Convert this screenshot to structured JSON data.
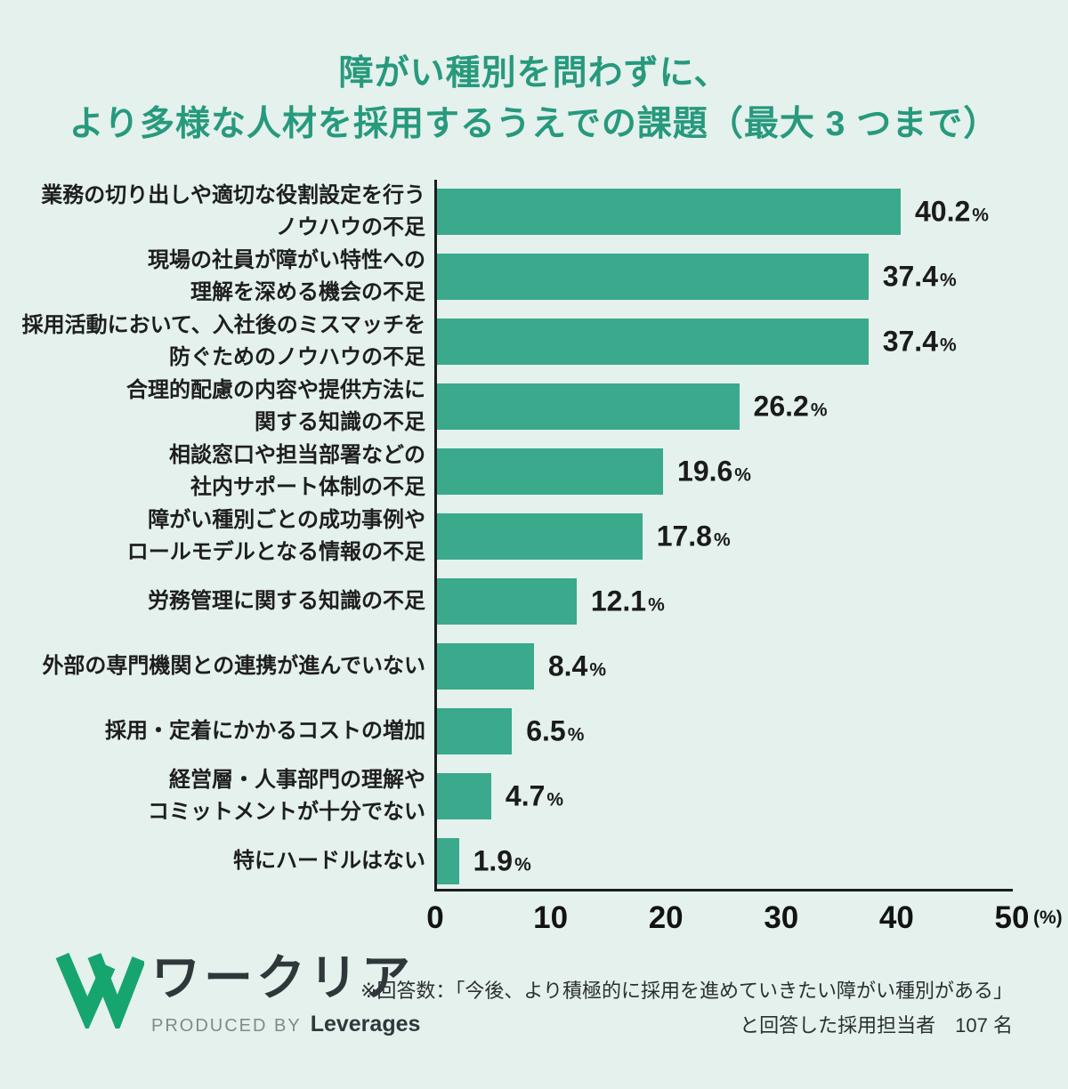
{
  "title": {
    "line1": "障がい種別を問わずに、",
    "line2": "より多様な人材を採用するうえでの課題（最大 3 つまで）"
  },
  "chart_data": {
    "type": "bar",
    "orientation": "horizontal",
    "categories": [
      "業務の切り出しや適切な役割設定を行う\nノウハウの不足",
      "現場の社員が障がい特性への\n理解を深める機会の不足",
      "採用活動において、入社後のミスマッチを\n防ぐためのノウハウの不足",
      "合理的配慮の内容や提供方法に\n関する知識の不足",
      "相談窓口や担当部署などの\n社内サポート体制の不足",
      "障がい種別ごとの成功事例や\nロールモデルとなる情報の不足",
      "労務管理に関する知識の不足",
      "外部の専門機関との連携が進んでいない",
      "採用・定着にかかるコストの増加",
      "経営層・人事部門の理解や\nコミットメントが十分でない",
      "特にハードルはない"
    ],
    "values": [
      40.2,
      37.4,
      37.4,
      26.2,
      19.6,
      17.8,
      12.1,
      8.4,
      6.5,
      4.7,
      1.9
    ],
    "value_labels": [
      "40.2",
      "37.4",
      "37.4",
      "26.2",
      "19.6",
      "17.8",
      "12.1",
      "8.4",
      "6.5",
      "4.7",
      "1.9"
    ],
    "value_suffix": "%",
    "xlim": [
      0,
      50
    ],
    "x_ticks": [
      0,
      10,
      20,
      30,
      40,
      50
    ],
    "x_unit": "(%)",
    "grid": false,
    "legend": "none",
    "bar_color": "#3aa98c"
  },
  "footnote": {
    "line1": "※回答数：「今後、より積極的に採用を進めていきたい障がい種別がある」",
    "line2": "と回答した採用担当者　107 名"
  },
  "logo": {
    "brand": "ワークリア",
    "produced_by": "PRODUCED BY",
    "company": "Leverages"
  },
  "colors": {
    "background": "#e4f1ed",
    "bar": "#3aa98c",
    "title": "#27997d",
    "axis": "#1c1c1c",
    "logo_green": "#17a56f"
  }
}
